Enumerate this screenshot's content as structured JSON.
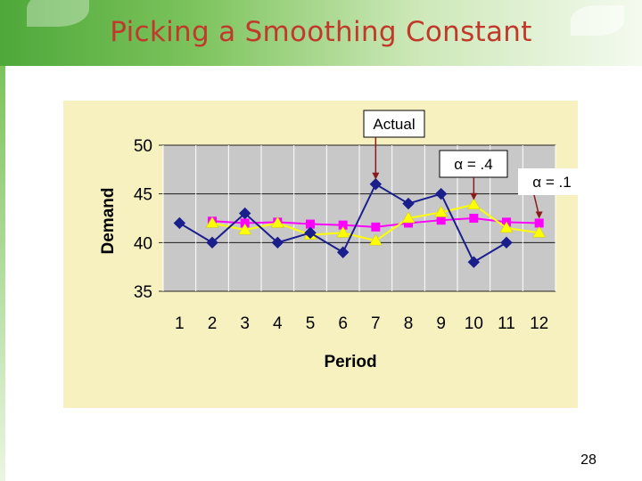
{
  "slide": {
    "title": "Picking a Smoothing Constant",
    "page_number": "28"
  },
  "colors": {
    "title": "#c0392b",
    "plot_bg": "#c8c8c8",
    "chart_bg": "#f7f1c0",
    "actual": "#1a1f8c",
    "alpha_04": "#ffff00",
    "alpha_01": "#ff00ff"
  },
  "chart_data": {
    "type": "line",
    "title": "",
    "xlabel": "Period",
    "ylabel": "Demand",
    "x": [
      1,
      2,
      3,
      4,
      5,
      6,
      7,
      8,
      9,
      10,
      11,
      12
    ],
    "ylim": [
      35,
      50
    ],
    "yticks": [
      35,
      40,
      45,
      50
    ],
    "grid": true,
    "series": [
      {
        "name": "Actual",
        "marker": "diamond",
        "color": "#1a1f8c",
        "values": [
          42,
          40,
          43,
          40,
          41,
          39,
          46,
          44,
          45,
          38,
          40,
          null
        ]
      },
      {
        "name": "α = .1",
        "marker": "square",
        "color": "#ff00ff",
        "values": [
          null,
          42.2,
          42.0,
          42.1,
          41.9,
          41.8,
          41.6,
          42.0,
          42.3,
          42.5,
          42.1,
          42.0
        ]
      },
      {
        "name": "α = .4",
        "marker": "triangle",
        "color": "#ffff00",
        "values": [
          null,
          42.0,
          41.3,
          42.0,
          40.8,
          41.0,
          40.2,
          42.5,
          43.1,
          43.9,
          41.5,
          41.0
        ]
      }
    ],
    "annotations": [
      {
        "label": "Actual",
        "series": 0,
        "point_period": 7
      },
      {
        "label": "α = .4",
        "series": 2,
        "point_period": 10
      },
      {
        "label": "α = .1",
        "series": 1,
        "point_period": 12
      }
    ]
  }
}
